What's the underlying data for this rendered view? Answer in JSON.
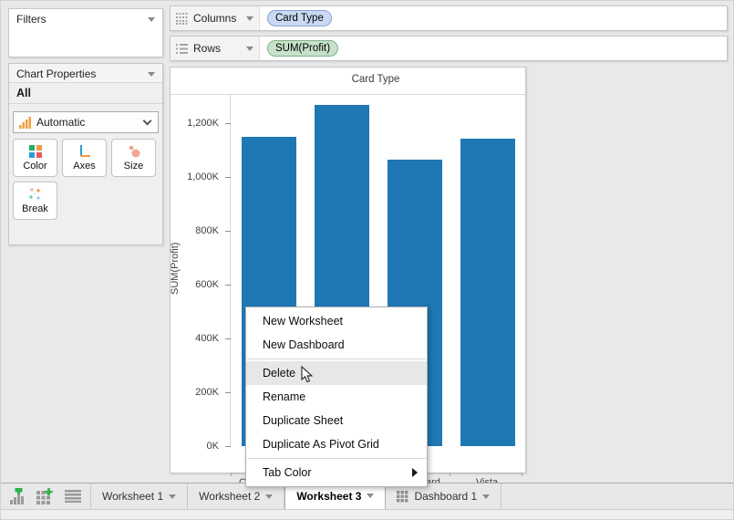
{
  "colors": {
    "bar": "#1f77b4",
    "pill_dimension_bg": "#c9d9f3",
    "pill_dimension_border": "#8ba4d0",
    "pill_measure_bg": "#c6e2c9",
    "pill_measure_border": "#83b087",
    "menu_highlight": "#e7e7e7",
    "icon_green_plus": "#2bb24c",
    "icon_gray": "#9a9a9a"
  },
  "filters_panel": {
    "title": "Filters"
  },
  "chart_properties": {
    "title": "Chart Properties",
    "scope": "All",
    "mark_type_dropdown": "Automatic",
    "mark_buttons": [
      {
        "label": "Color",
        "icon": "color-swatches-icon"
      },
      {
        "label": "Axes",
        "icon": "axes-icon"
      },
      {
        "label": "Size",
        "icon": "size-circles-icon"
      },
      {
        "label": "Break",
        "icon": "break-dots-icon"
      }
    ]
  },
  "shelves": {
    "columns": {
      "label": "Columns",
      "pill": "Card Type"
    },
    "rows": {
      "label": "Rows",
      "pill": "SUM(Profit)"
    }
  },
  "chart_data": {
    "type": "bar",
    "title": "Card Type",
    "ylabel": "SUM(Profit)",
    "categories_visible": [
      "C",
      "",
      "ard",
      "Vista"
    ],
    "values_k": [
      1150,
      1270,
      1065,
      1145
    ],
    "y_ticks_k": [
      0,
      200,
      400,
      600,
      800,
      1000,
      1200
    ],
    "y_tick_labels": [
      "0K",
      "200K",
      "400K",
      "600K",
      "800K",
      "1,000K",
      "1,200K"
    ],
    "ylim_k": [
      0,
      1310
    ],
    "bar_color": "#1f77b4",
    "grid": false,
    "legend": null,
    "note": "second category label fully hidden behind context menu; first and third partially hidden"
  },
  "context_menu": {
    "items": [
      {
        "label": "New Worksheet"
      },
      {
        "label": "New Dashboard",
        "separator_after": true
      },
      {
        "label": "Delete",
        "highlighted": true
      },
      {
        "label": "Rename"
      },
      {
        "label": "Duplicate Sheet"
      },
      {
        "label": "Duplicate As Pivot Grid",
        "separator_after": true
      },
      {
        "label": "Tab Color",
        "submenu": true
      }
    ]
  },
  "tab_bar": {
    "icon_buttons": [
      "new-worksheet",
      "new-dashboard",
      "sheet-sorter"
    ],
    "tabs": [
      {
        "label": "Worksheet 1",
        "type": "worksheet",
        "active": false
      },
      {
        "label": "Worksheet 2",
        "type": "worksheet",
        "active": false
      },
      {
        "label": "Worksheet 3",
        "type": "worksheet",
        "active": true
      },
      {
        "label": "Dashboard 1",
        "type": "dashboard",
        "active": false
      }
    ]
  }
}
